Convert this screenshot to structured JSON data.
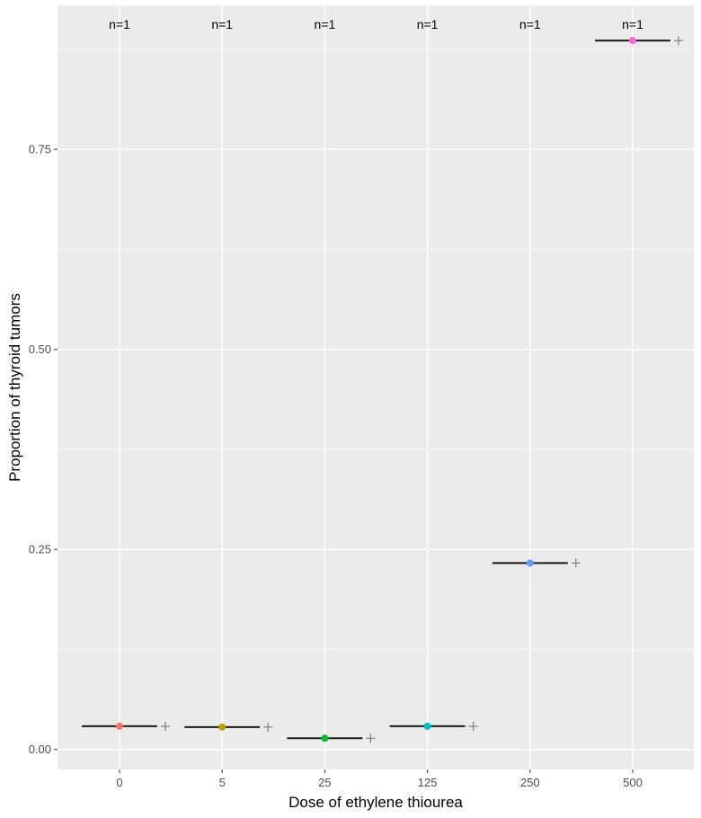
{
  "chart_data": {
    "type": "scatter",
    "title": "",
    "xlabel": "Dose of ethylene thiourea",
    "ylabel": "Proportion of thyroid tumors",
    "categories": [
      "0",
      "5",
      "25",
      "125",
      "250",
      "500"
    ],
    "ylim": [
      -0.025,
      0.93
    ],
    "y_ticks": [
      0.0,
      0.25,
      0.5,
      0.75
    ],
    "y_tick_labels": [
      "0.00",
      "0.25",
      "0.50",
      "0.75"
    ],
    "grid": true,
    "legend": "none",
    "n_labels": [
      "n=1",
      "n=1",
      "n=1",
      "n=1",
      "n=1",
      "n=1"
    ],
    "series": [
      {
        "values": [
          0.029,
          0.028,
          0.014,
          0.029,
          0.233,
          0.886
        ],
        "colors": [
          "#F8766D",
          "#B79F00",
          "#00BA38",
          "#00BFC4",
          "#619CFF",
          "#F564E3"
        ]
      }
    ],
    "crosshair_values": [
      0.029,
      0.028,
      0.014,
      0.029,
      0.233,
      0.886
    ],
    "panel_background": "#EBEBEB",
    "grid_color": "#FFFFFF",
    "segment_color": "#1a1a1a",
    "cross_color": "#7f7f7f"
  }
}
